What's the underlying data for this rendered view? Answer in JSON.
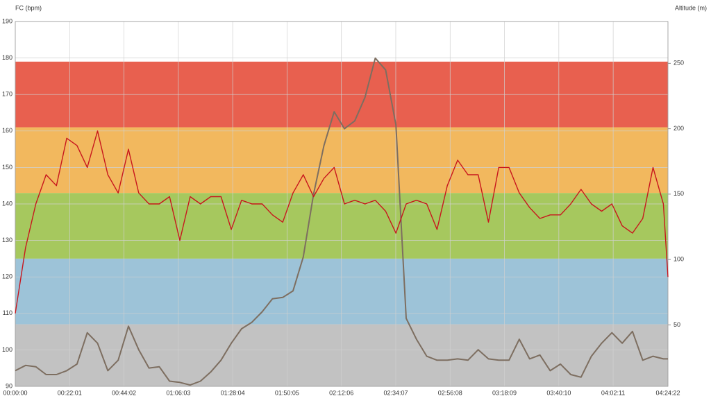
{
  "chart_data": {
    "type": "line",
    "y_label": "FC (bpm)",
    "y2_label": "Altitude (m)",
    "grid": true,
    "x": [
      0,
      250,
      500,
      750,
      1000,
      1250,
      1500,
      1750,
      2000,
      2250,
      2500,
      2750,
      3000,
      3250,
      3500,
      3750,
      4000,
      4250,
      4500,
      4750,
      5000,
      5250,
      5500,
      5750,
      6000,
      6250,
      6500,
      6750,
      7000,
      7250,
      7500,
      7750,
      8000,
      8250,
      8500,
      8750,
      9000,
      9250,
      9500,
      9750,
      10000,
      10250,
      10500,
      10750,
      11000,
      11250,
      11500,
      11750,
      12000,
      12250,
      12500,
      12750,
      13000,
      13250,
      13500,
      13750,
      14000,
      14250,
      14500,
      14750,
      15000,
      15250,
      15500,
      15750,
      15862
    ],
    "xlim": [
      0,
      15862
    ],
    "xticks": [
      {
        "value": 0,
        "label": "00:00:00"
      },
      {
        "value": 1321,
        "label": "00:22:01"
      },
      {
        "value": 2642,
        "label": "00:44:02"
      },
      {
        "value": 3963,
        "label": "01:06:03"
      },
      {
        "value": 5284,
        "label": "01:28:04"
      },
      {
        "value": 6605,
        "label": "01:50:05"
      },
      {
        "value": 7926,
        "label": "02:12:06"
      },
      {
        "value": 9247,
        "label": "02:34:07"
      },
      {
        "value": 10568,
        "label": "02:56:08"
      },
      {
        "value": 11889,
        "label": "03:18:09"
      },
      {
        "value": 13210,
        "label": "03:40:10"
      },
      {
        "value": 14531,
        "label": "04:02:11"
      },
      {
        "value": 15862,
        "label": "04:24:22"
      }
    ],
    "ylim": [
      90,
      190
    ],
    "yticks": [
      90,
      100,
      110,
      120,
      130,
      140,
      150,
      160,
      170,
      180,
      190
    ],
    "y2lim": [
      3,
      282
    ],
    "y2ticks": [
      50,
      100,
      150,
      200,
      250
    ],
    "zones": [
      {
        "from": 161,
        "to": 179,
        "color": "#e8604f"
      },
      {
        "from": 143,
        "to": 161,
        "color": "#f2b85e"
      },
      {
        "from": 125,
        "to": 143,
        "color": "#a6c85e"
      },
      {
        "from": 107,
        "to": 125,
        "color": "#9dc3d8"
      },
      {
        "from": 90,
        "to": 107,
        "color": "#c2c2c2"
      }
    ],
    "series": [
      {
        "name": "Altitude",
        "color": "#7d6e60",
        "axis": "y2",
        "values": [
          15,
          19,
          18,
          12,
          12,
          15,
          20,
          44,
          36,
          15,
          23,
          49,
          31,
          17,
          18,
          7,
          6,
          4,
          7,
          14,
          23,
          36,
          47,
          52,
          60,
          70,
          71,
          76,
          102,
          150,
          187,
          213,
          200,
          206,
          224,
          254,
          245,
          203,
          55,
          39,
          26,
          23,
          23,
          24,
          23,
          31,
          24,
          23,
          23,
          39,
          24,
          27,
          15,
          20,
          12,
          10,
          26,
          36,
          44,
          36,
          45,
          23,
          26,
          24,
          24
        ]
      },
      {
        "name": "FC",
        "color": "#c8161d",
        "values": [
          110,
          128,
          140,
          148,
          145,
          158,
          156,
          150,
          160,
          148,
          143,
          155,
          143,
          140,
          140,
          142,
          130,
          142,
          140,
          142,
          142,
          133,
          141,
          140,
          140,
          137,
          135,
          143,
          148,
          142,
          147,
          150,
          140,
          141,
          140,
          141,
          138,
          132,
          140,
          141,
          140,
          133,
          145,
          152,
          148,
          148,
          135,
          150,
          150,
          143,
          139,
          136,
          137,
          137,
          140,
          144,
          140,
          138,
          140,
          134,
          132,
          136,
          150,
          140,
          120
        ]
      }
    ]
  }
}
